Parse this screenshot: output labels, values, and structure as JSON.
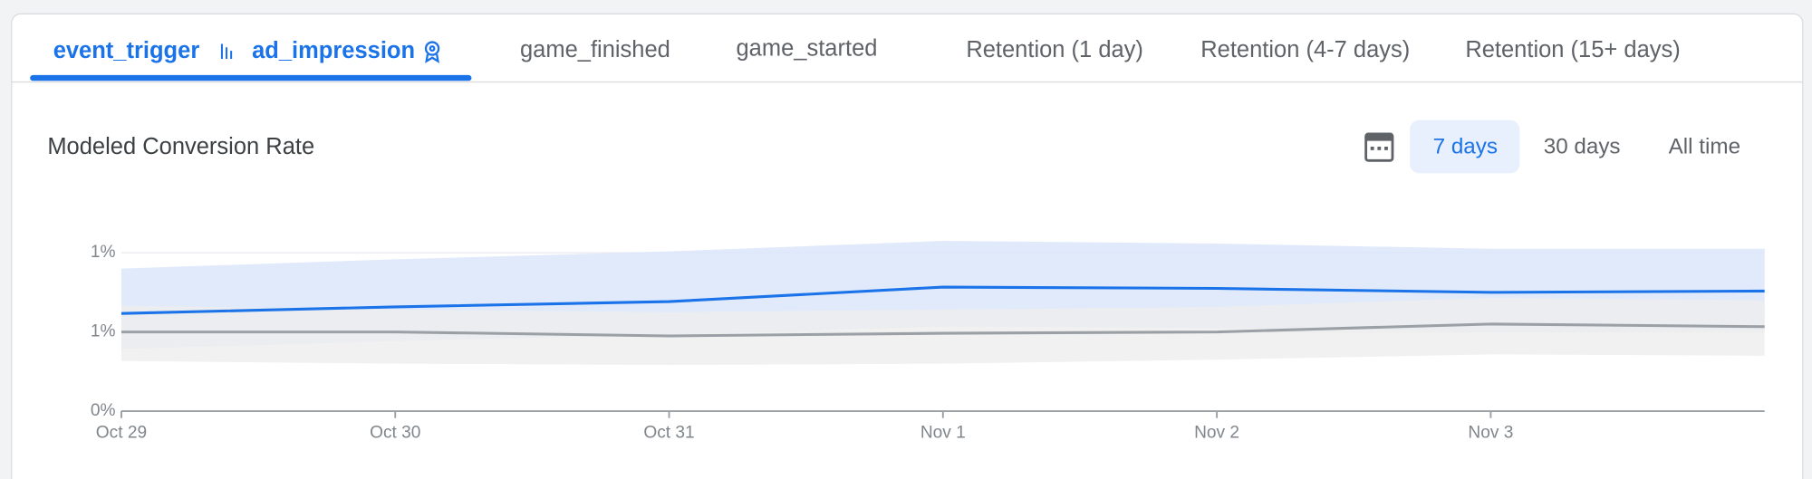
{
  "tabs": [
    "event_trigger",
    "ad_impression",
    "game_finished",
    "game_started",
    "Retention (1 day)",
    "Retention (4-7 days)",
    "Retention (15+ days)"
  ],
  "ranges": [
    "7 days",
    "30 days",
    "All time"
  ],
  "chart_data": {
    "type": "line",
    "title": "Modeled Conversion Rate",
    "categories": [
      "Oct 29",
      "Oct 30",
      "Oct 31",
      "Nov 1",
      "Nov 2",
      "Nov 3",
      null
    ],
    "series": [
      {
        "color": "#1a73e8",
        "band_color": "#dbe6fa",
        "values": [
          0.74,
          0.79,
          0.83,
          0.94,
          0.93,
          0.9,
          0.91
        ],
        "upper": [
          1.08,
          1.15,
          1.21,
          1.29,
          1.27,
          1.23,
          1.23
        ],
        "lower": [
          0.47,
          0.53,
          0.58,
          0.64,
          0.63,
          0.6,
          0.61
        ]
      },
      {
        "color": "#9aa0a6",
        "band_color": "#eeeeee",
        "values": [
          0.6,
          0.6,
          0.57,
          0.59,
          0.6,
          0.66,
          0.64
        ],
        "upper": [
          0.8,
          0.77,
          0.75,
          0.77,
          0.79,
          0.86,
          0.84
        ],
        "lower": [
          0.38,
          0.36,
          0.35,
          0.36,
          0.39,
          0.43,
          0.42
        ]
      }
    ],
    "ylim": [
      0,
      1.4
    ],
    "yticks": [
      0,
      {
        "value": 0.6,
        "label": "1%"
      },
      {
        "value": 1.2,
        "label": "1%"
      }
    ],
    "zero_label": "0%",
    "grid": true
  }
}
